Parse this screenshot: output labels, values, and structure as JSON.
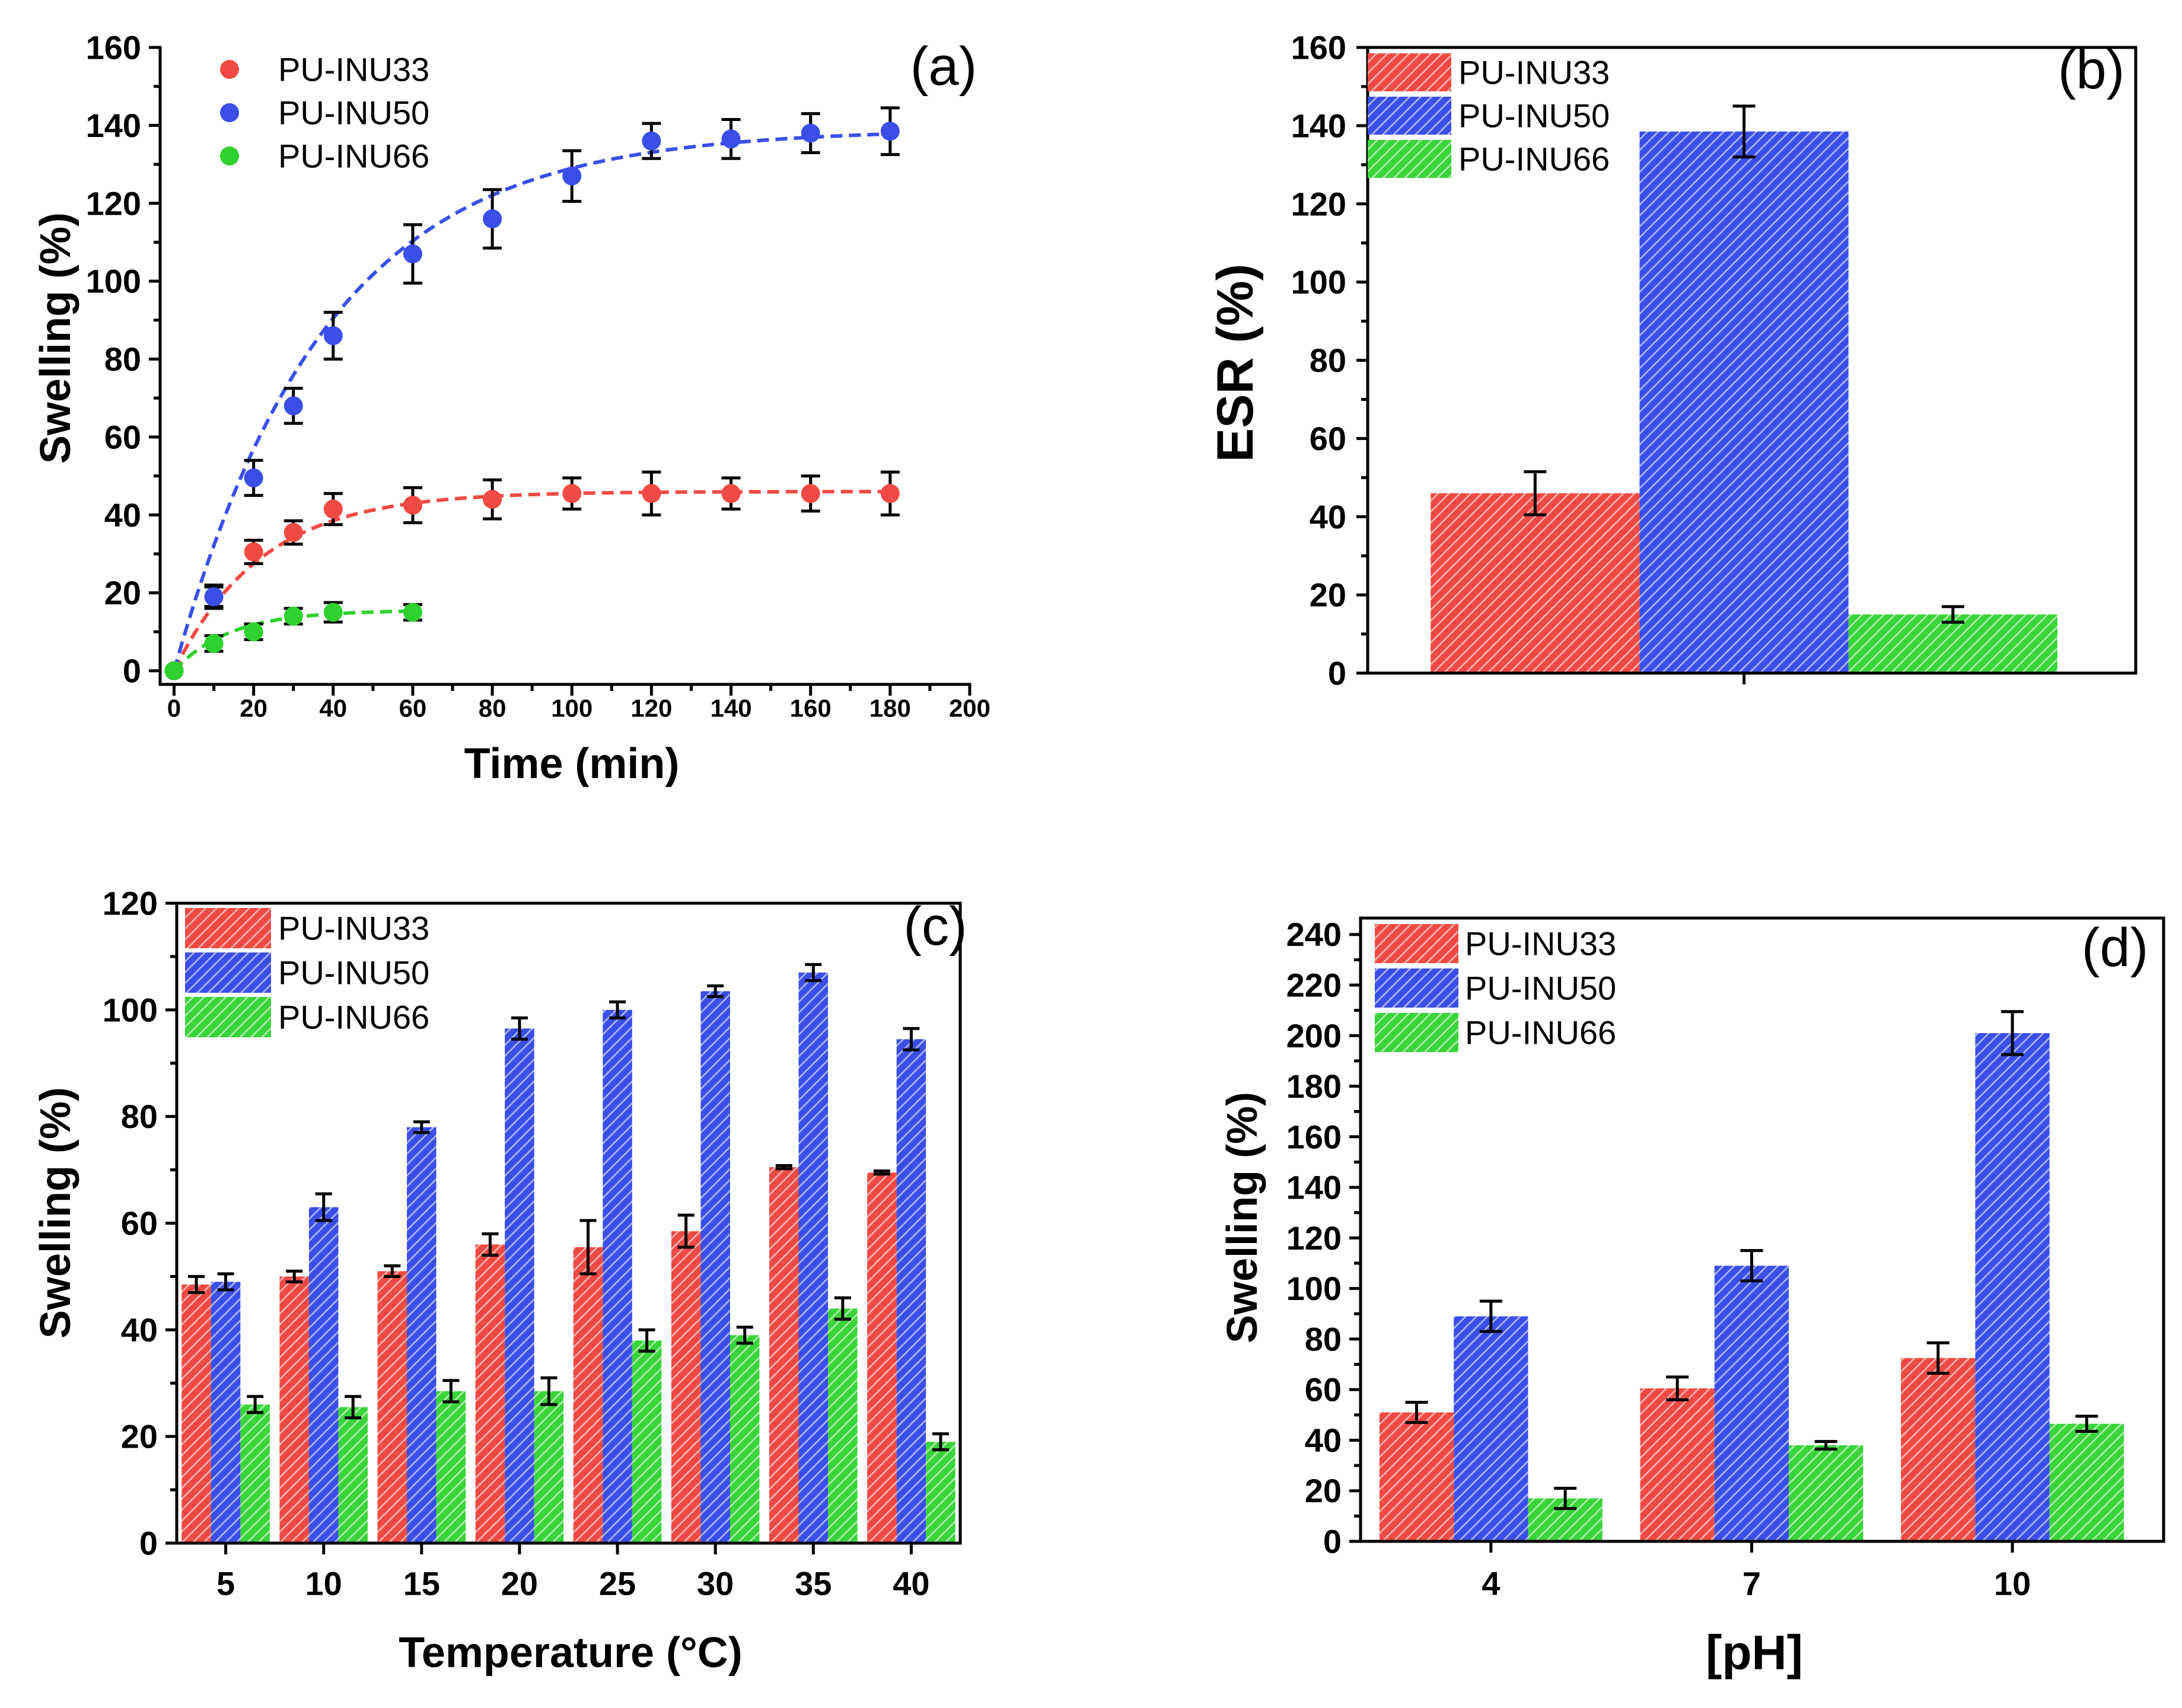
{
  "chart_data": [
    {
      "type": "scatter",
      "title": "(a)",
      "xlabel": "Time (min)",
      "ylabel": "Swelling (%)",
      "xlim": [
        -3.5,
        200
      ],
      "ylim": [
        -3.5,
        160
      ],
      "xticks": [
        0,
        20,
        40,
        60,
        80,
        100,
        120,
        140,
        160,
        180,
        200
      ],
      "yticks": [
        0,
        20,
        40,
        60,
        80,
        100,
        120,
        140,
        160
      ],
      "grid": false,
      "legend": "top-left",
      "series": [
        {
          "name": "PU-INU33",
          "color": "#f04a44",
          "x": [
            0,
            10,
            20,
            30,
            40,
            60,
            80,
            100,
            120,
            140,
            160,
            180
          ],
          "y": [
            0,
            19,
            30.5,
            35.5,
            41.5,
            42.5,
            44,
            45.5,
            45.5,
            45.5,
            45.5,
            45.5
          ],
          "err": [
            0,
            2.5,
            3,
            3,
            4,
            4.5,
            5,
            4,
            5.5,
            4,
            4.5,
            5.5
          ],
          "fit": {
            "A": 46,
            "tau": 22,
            "x_max": 180
          }
        },
        {
          "name": "PU-INU50",
          "color": "#3a4fe8",
          "x": [
            0,
            10,
            20,
            30,
            40,
            60,
            80,
            100,
            120,
            140,
            160,
            180
          ],
          "y": [
            0,
            19,
            49.5,
            68,
            86,
            107,
            116,
            127,
            136,
            136.5,
            138,
            138.5
          ],
          "err": [
            0,
            3,
            4.5,
            4.5,
            6,
            7.5,
            7.5,
            6.5,
            4.5,
            5,
            5,
            6
          ],
          "fit": {
            "A": 139,
            "tau": 38,
            "x_max": 180
          }
        },
        {
          "name": "PU-INU66",
          "color": "#2fd12f",
          "x": [
            0,
            10,
            20,
            30,
            40,
            60
          ],
          "y": [
            0,
            7,
            10,
            14,
            15,
            15
          ],
          "err": [
            0,
            2,
            2,
            2,
            2.5,
            2
          ],
          "fit": {
            "A": 15.5,
            "tau": 14,
            "x_max": 60
          }
        }
      ]
    },
    {
      "type": "bar",
      "title": "(b)",
      "ylabel": "ESR (%)",
      "ylim": [
        0,
        160
      ],
      "yticks": [
        0,
        20,
        40,
        60,
        80,
        100,
        120,
        140,
        160
      ],
      "grid": false,
      "legend": "top-left",
      "series": [
        {
          "name": "PU-INU33",
          "color": "#f04a44",
          "values": [
            46
          ],
          "err": [
            5.5
          ]
        },
        {
          "name": "PU-INU50",
          "color": "#3a4fe8",
          "values": [
            138.5
          ],
          "err": [
            6.5
          ]
        },
        {
          "name": "PU-INU66",
          "color": "#3ad43a",
          "values": [
            15
          ],
          "err": [
            2
          ]
        }
      ]
    },
    {
      "type": "bar",
      "title": "(c)",
      "xlabel": "Temperature (°C)",
      "ylabel": "Swelling (%)",
      "ylim": [
        0,
        120
      ],
      "yticks": [
        0,
        20,
        40,
        60,
        80,
        100,
        120
      ],
      "categories": [
        "5",
        "10",
        "15",
        "20",
        "25",
        "30",
        "35",
        "40"
      ],
      "grid": false,
      "legend": "top-left",
      "series": [
        {
          "name": "PU-INU33",
          "color": "#f04a44",
          "values": [
            48.5,
            50,
            51,
            56,
            55.5,
            58.5,
            70.5,
            69.5
          ],
          "err": [
            1.5,
            1,
            1,
            2,
            5,
            3,
            0.3,
            0.3
          ]
        },
        {
          "name": "PU-INU50",
          "color": "#3a4fe8",
          "values": [
            49,
            63,
            78,
            96.5,
            100,
            103.5,
            107,
            94.5
          ],
          "err": [
            1.5,
            2.5,
            1,
            2,
            1.5,
            1,
            1.5,
            2
          ]
        },
        {
          "name": "PU-INU66",
          "color": "#3ad43a",
          "values": [
            26,
            25.5,
            28.5,
            28.5,
            38,
            39,
            44,
            19
          ],
          "err": [
            1.5,
            2,
            2,
            2.5,
            2,
            1.5,
            2,
            1.5
          ]
        }
      ]
    },
    {
      "type": "bar",
      "title": "(d)",
      "xlabel": "[pH]",
      "ylabel": "Swelling (%)",
      "ylim": [
        0,
        246.5
      ],
      "yticks": [
        0,
        20,
        40,
        60,
        80,
        100,
        120,
        140,
        160,
        180,
        200,
        220,
        240
      ],
      "categories": [
        "4",
        "7",
        "10"
      ],
      "grid": false,
      "legend": "top-left",
      "series": [
        {
          "name": "PU-INU33",
          "color": "#f04a44",
          "values": [
            51,
            60.5,
            72.5
          ],
          "err": [
            4,
            4.5,
            6
          ]
        },
        {
          "name": "PU-INU50",
          "color": "#3a4fe8",
          "values": [
            89,
            109,
            201
          ],
          "err": [
            6,
            6,
            8.5
          ]
        },
        {
          "name": "PU-INU66",
          "color": "#3ad43a",
          "values": [
            17,
            38,
            46.5
          ],
          "err": [
            4,
            1.5,
            3
          ]
        }
      ]
    }
  ]
}
